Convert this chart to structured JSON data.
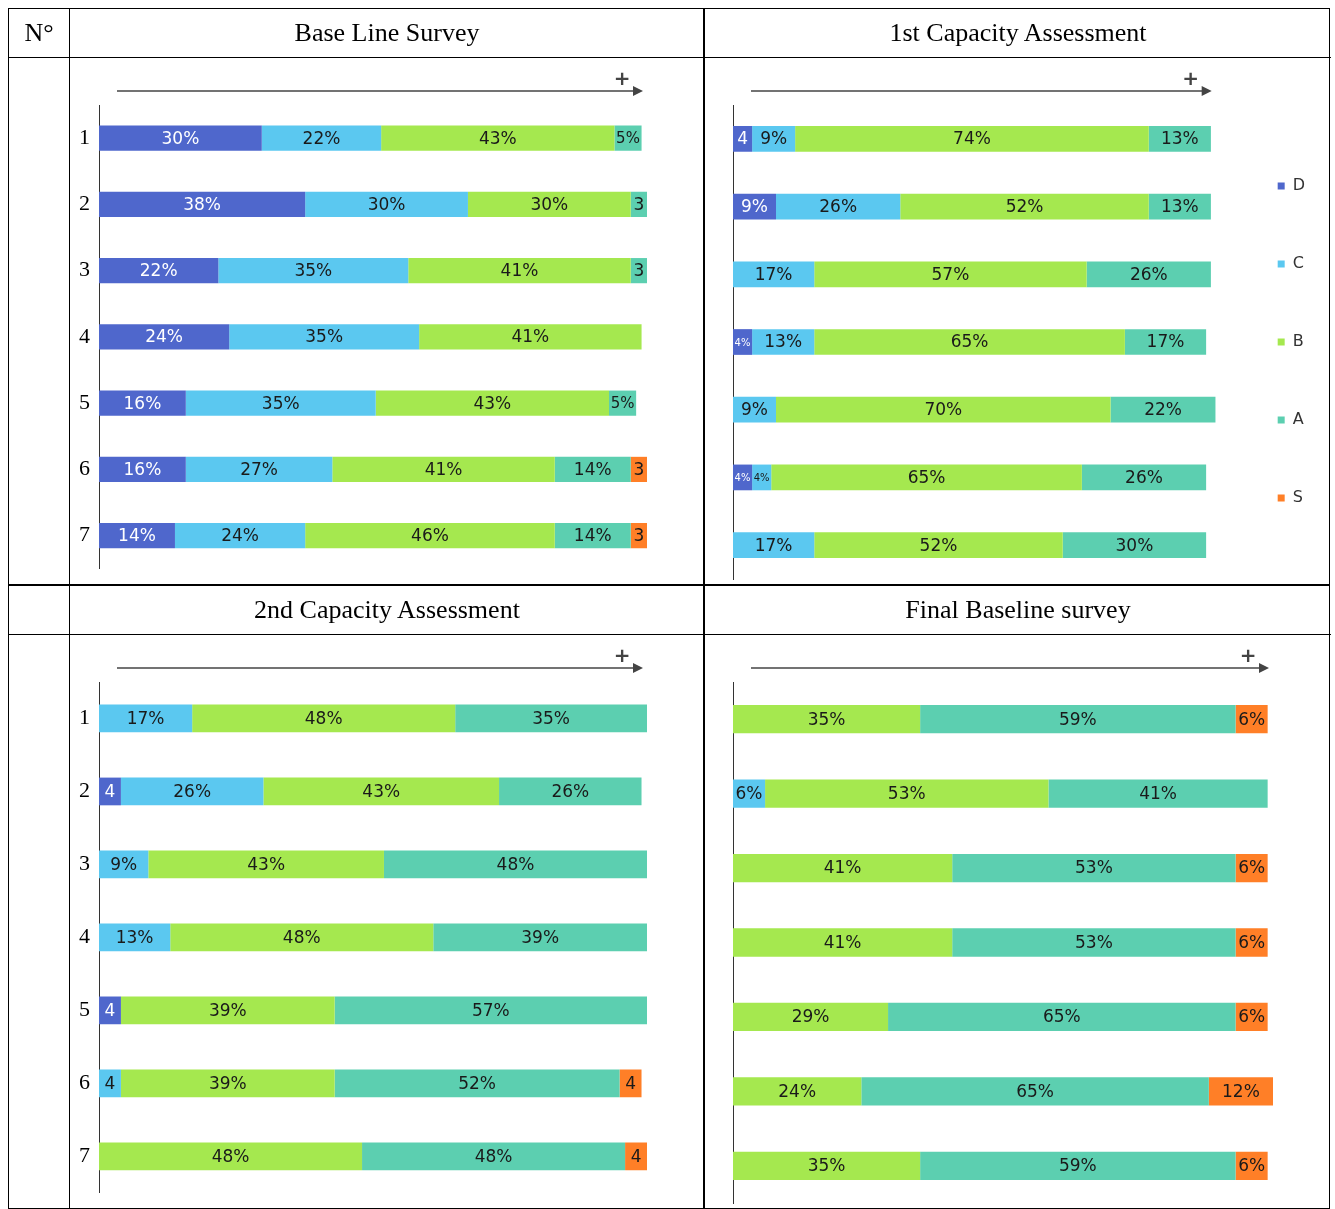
{
  "chart_data": [
    {
      "type": "bar",
      "title": "Base Line Survey",
      "ylabel": "N°",
      "orientation": "horizontal",
      "stacked": true,
      "categories": [
        "1",
        "2",
        "3",
        "4",
        "5",
        "6",
        "7"
      ],
      "tick_labels": "y",
      "legend": false,
      "annotations": [
        "+"
      ],
      "series": [
        {
          "color": "#4f67cc",
          "values": [
            30,
            38,
            22,
            24,
            16,
            16,
            14
          ],
          "value_labels": [
            "30%",
            "38%",
            "22%",
            "24%",
            "16%",
            "16%",
            "14%"
          ]
        },
        {
          "color": "#5bc8f0",
          "values": [
            22,
            30,
            35,
            35,
            35,
            27,
            24
          ],
          "value_labels": [
            "22%",
            "30%",
            "35%",
            "35%",
            "35%",
            "27%",
            "24%"
          ]
        },
        {
          "color": "#a5e84f",
          "values": [
            43,
            30,
            41,
            41,
            43,
            41,
            46
          ],
          "value_labels": [
            "43%",
            "30%",
            "41%",
            "41%",
            "43%",
            "41%",
            "46%"
          ]
        },
        {
          "color": "#5ccfb0",
          "values": [
            5,
            3,
            3,
            null,
            5,
            14,
            14
          ],
          "value_labels": [
            "5%",
            "3",
            "3",
            null,
            "5%",
            "14%",
            "14%"
          ]
        },
        {
          "color": "#ff7f27",
          "values": [
            null,
            null,
            null,
            null,
            null,
            3,
            3
          ],
          "value_labels": [
            null,
            null,
            null,
            null,
            null,
            "3",
            "3"
          ]
        }
      ]
    },
    {
      "type": "bar",
      "title": "1st Capacity Assessment",
      "orientation": "horizontal",
      "stacked": true,
      "categories": [
        "1",
        "2",
        "3",
        "4",
        "5",
        "6",
        "7"
      ],
      "tick_labels": false,
      "legend": "right",
      "annotations": [
        "+"
      ],
      "series": [
        {
          "name": "D",
          "color": "#4f67cc",
          "values": [
            4,
            9,
            null,
            4,
            null,
            4,
            null
          ],
          "value_labels": [
            "4",
            "9%",
            null,
            "4%",
            null,
            "4%",
            null
          ]
        },
        {
          "name": "C",
          "color": "#5bc8f0",
          "values": [
            9,
            26,
            17,
            13,
            9,
            4,
            17
          ],
          "value_labels": [
            "9%",
            "26%",
            "17%",
            "13%",
            "9%",
            "4%",
            "17%"
          ]
        },
        {
          "name": "B",
          "color": "#a5e84f",
          "values": [
            74,
            52,
            57,
            65,
            70,
            65,
            52
          ],
          "value_labels": [
            "74%",
            "52%",
            "57%",
            "65%",
            "70%",
            "65%",
            "52%"
          ]
        },
        {
          "name": "A",
          "color": "#5ccfb0",
          "values": [
            13,
            13,
            26,
            17,
            22,
            26,
            30
          ],
          "value_labels": [
            "13%",
            "13%",
            "26%",
            "17%",
            "22%",
            "26%",
            "30%"
          ]
        },
        {
          "name": "S",
          "color": "#ff7f27",
          "values": [
            null,
            null,
            null,
            null,
            null,
            null,
            null
          ],
          "value_labels": [
            null,
            null,
            null,
            null,
            null,
            null,
            null
          ]
        }
      ]
    },
    {
      "type": "bar",
      "title": "2nd Capacity Assessment",
      "orientation": "horizontal",
      "stacked": true,
      "categories": [
        "1",
        "2",
        "3",
        "4",
        "5",
        "6",
        "7"
      ],
      "tick_labels": "y",
      "legend": false,
      "annotations": [
        "+"
      ],
      "series": [
        {
          "color": "#4f67cc",
          "values": [
            null,
            4,
            null,
            null,
            4,
            null,
            null
          ],
          "value_labels": [
            null,
            "4",
            null,
            null,
            "4",
            null,
            null
          ]
        },
        {
          "color": "#5bc8f0",
          "values": [
            17,
            26,
            9,
            13,
            null,
            4,
            null
          ],
          "value_labels": [
            "17%",
            "26%",
            "9%",
            "13%",
            null,
            "4",
            null
          ]
        },
        {
          "color": "#a5e84f",
          "values": [
            48,
            43,
            43,
            48,
            39,
            39,
            48
          ],
          "value_labels": [
            "48%",
            "43%",
            "43%",
            "48%",
            "39%",
            "39%",
            "48%"
          ]
        },
        {
          "color": "#5ccfb0",
          "values": [
            35,
            26,
            48,
            39,
            57,
            52,
            48
          ],
          "value_labels": [
            "35%",
            "26%",
            "48%",
            "39%",
            "57%",
            "52%",
            "48%"
          ]
        },
        {
          "color": "#ff7f27",
          "values": [
            null,
            null,
            null,
            null,
            null,
            4,
            4
          ],
          "value_labels": [
            null,
            null,
            null,
            null,
            null,
            "4",
            "4"
          ]
        }
      ]
    },
    {
      "type": "bar",
      "title": "Final Baseline survey",
      "orientation": "horizontal",
      "stacked": true,
      "categories": [
        "1",
        "2",
        "3",
        "4",
        "5",
        "6",
        "7"
      ],
      "tick_labels": false,
      "legend": false,
      "annotations": [
        "+"
      ],
      "series": [
        {
          "color": "#5bc8f0",
          "values": [
            null,
            6,
            null,
            null,
            null,
            null,
            null
          ],
          "value_labels": [
            null,
            "6%",
            null,
            null,
            null,
            null,
            null
          ]
        },
        {
          "color": "#a5e84f",
          "values": [
            35,
            53,
            41,
            41,
            29,
            24,
            35
          ],
          "value_labels": [
            "35%",
            "53%",
            "41%",
            "41%",
            "29%",
            "24%",
            "35%"
          ]
        },
        {
          "color": "#5ccfb0",
          "values": [
            59,
            41,
            53,
            53,
            65,
            65,
            59
          ],
          "value_labels": [
            "59%",
            "41%",
            "53%",
            "53%",
            "65%",
            "65%",
            "59%"
          ]
        },
        {
          "color": "#ff7f27",
          "values": [
            6,
            null,
            6,
            6,
            6,
            12,
            6
          ],
          "value_labels": [
            "6%",
            null,
            "6%",
            "6%",
            "6%",
            "12%",
            "6%"
          ]
        }
      ]
    }
  ]
}
